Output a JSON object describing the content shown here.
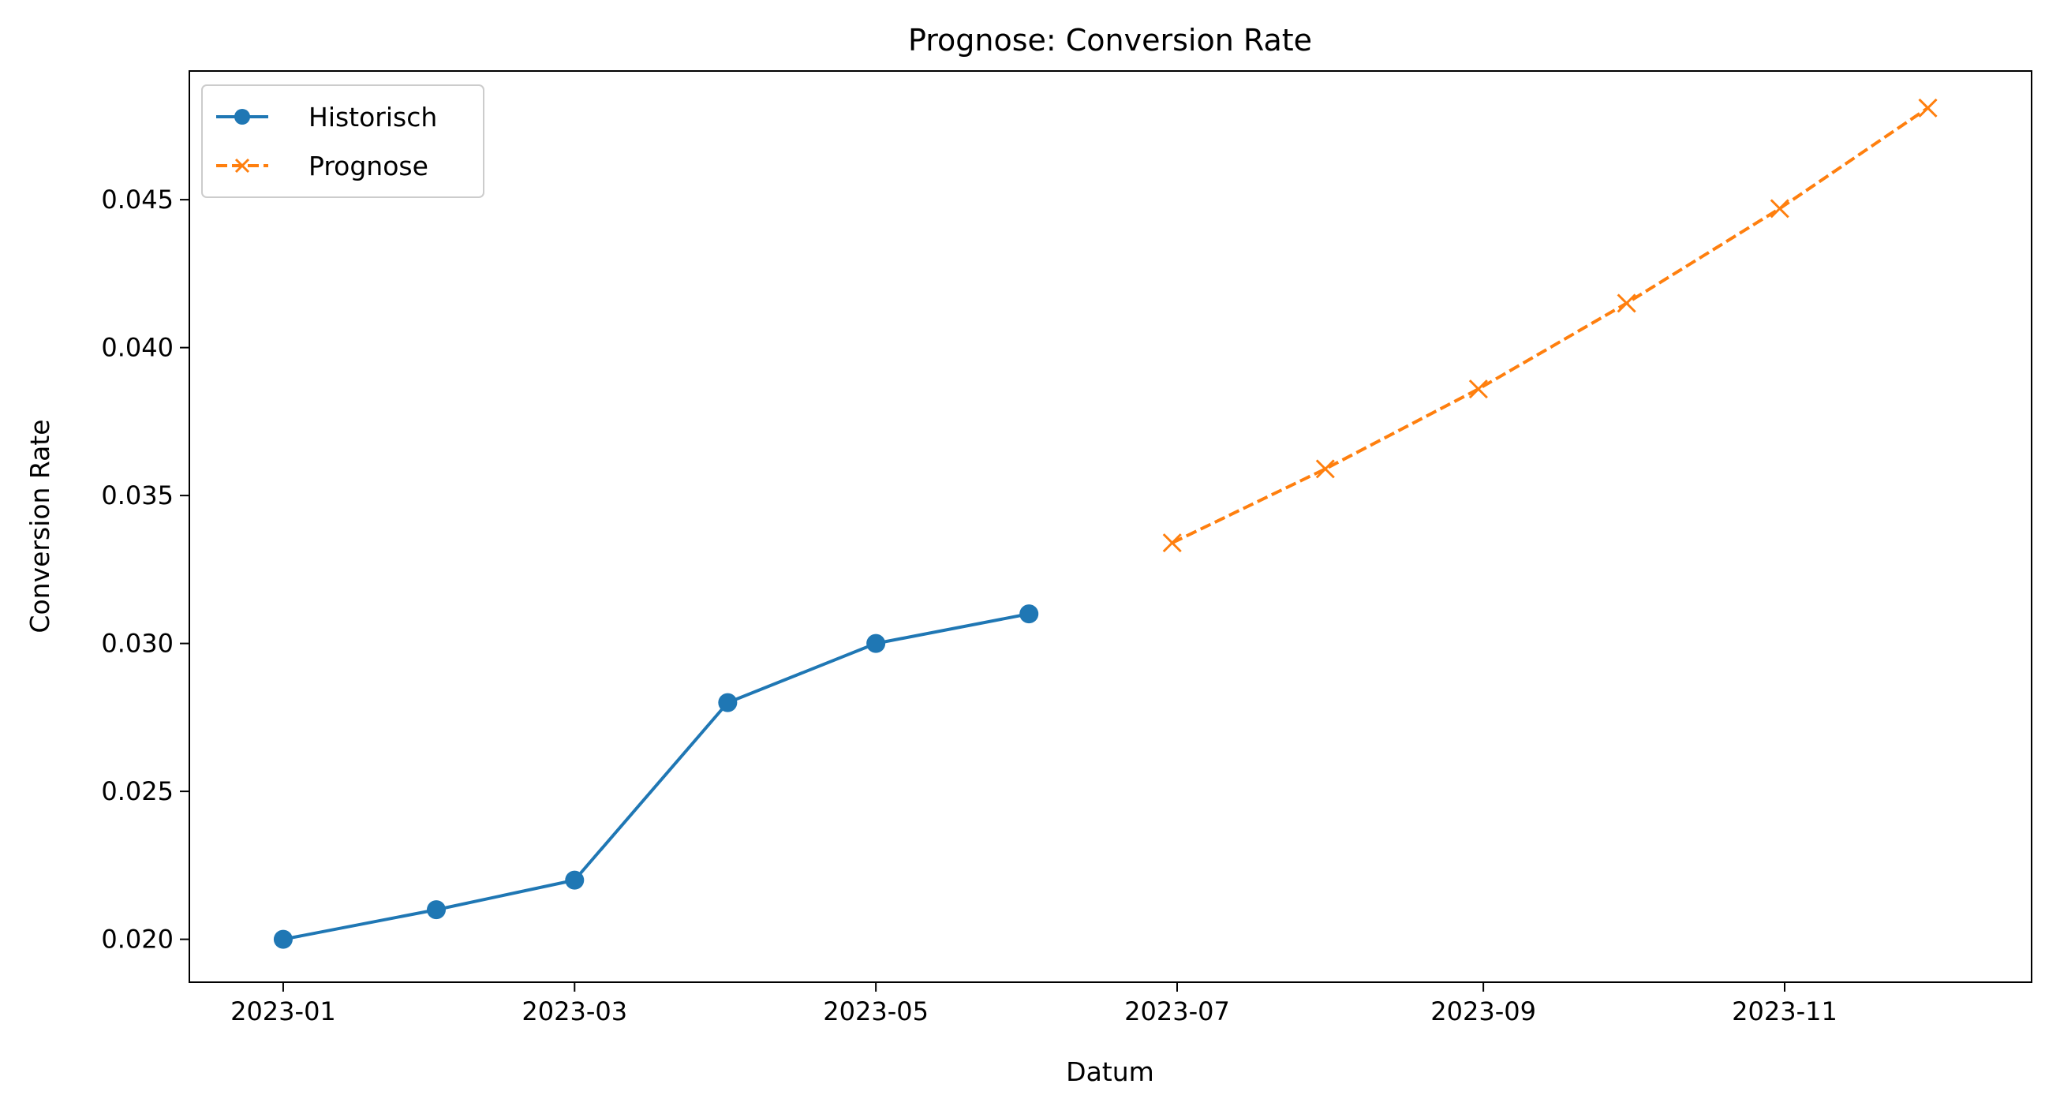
{
  "chart_data": {
    "type": "line",
    "title": "Prognose: Conversion Rate",
    "xlabel": "Datum",
    "ylabel": "Conversion Rate",
    "xlim": [
      "2022-12-13",
      "2023-12-21"
    ],
    "ylim": [
      0.01855,
      0.04935
    ],
    "x_ticks": [
      "2023-01-01",
      "2023-03-01",
      "2023-05-01",
      "2023-07-01",
      "2023-09-01",
      "2023-11-01"
    ],
    "x_tick_labels": [
      "2023-01",
      "2023-03",
      "2023-05",
      "2023-07",
      "2023-09",
      "2023-11"
    ],
    "y_ticks": [
      0.02,
      0.025,
      0.03,
      0.035,
      0.04,
      0.045
    ],
    "y_tick_labels": [
      "0.020",
      "0.025",
      "0.030",
      "0.035",
      "0.040",
      "0.045"
    ],
    "grid": false,
    "legend_position": "upper-left",
    "series": [
      {
        "name": "Historisch",
        "color": "#1f77b4",
        "line_style": "solid",
        "marker": "circle",
        "x": [
          "2023-01-01",
          "2023-02-01",
          "2023-03-01",
          "2023-04-01",
          "2023-05-01",
          "2023-06-01"
        ],
        "values": [
          0.02,
          0.021,
          0.022,
          0.028,
          0.03,
          0.031
        ]
      },
      {
        "name": "Prognose",
        "color": "#ff7f0e",
        "line_style": "dashed",
        "marker": "x",
        "x": [
          "2023-06-30",
          "2023-07-31",
          "2023-08-31",
          "2023-09-30",
          "2023-10-31",
          "2023-11-30"
        ],
        "values": [
          0.0334,
          0.0359,
          0.0386,
          0.0415,
          0.0447,
          0.0481
        ]
      }
    ]
  }
}
